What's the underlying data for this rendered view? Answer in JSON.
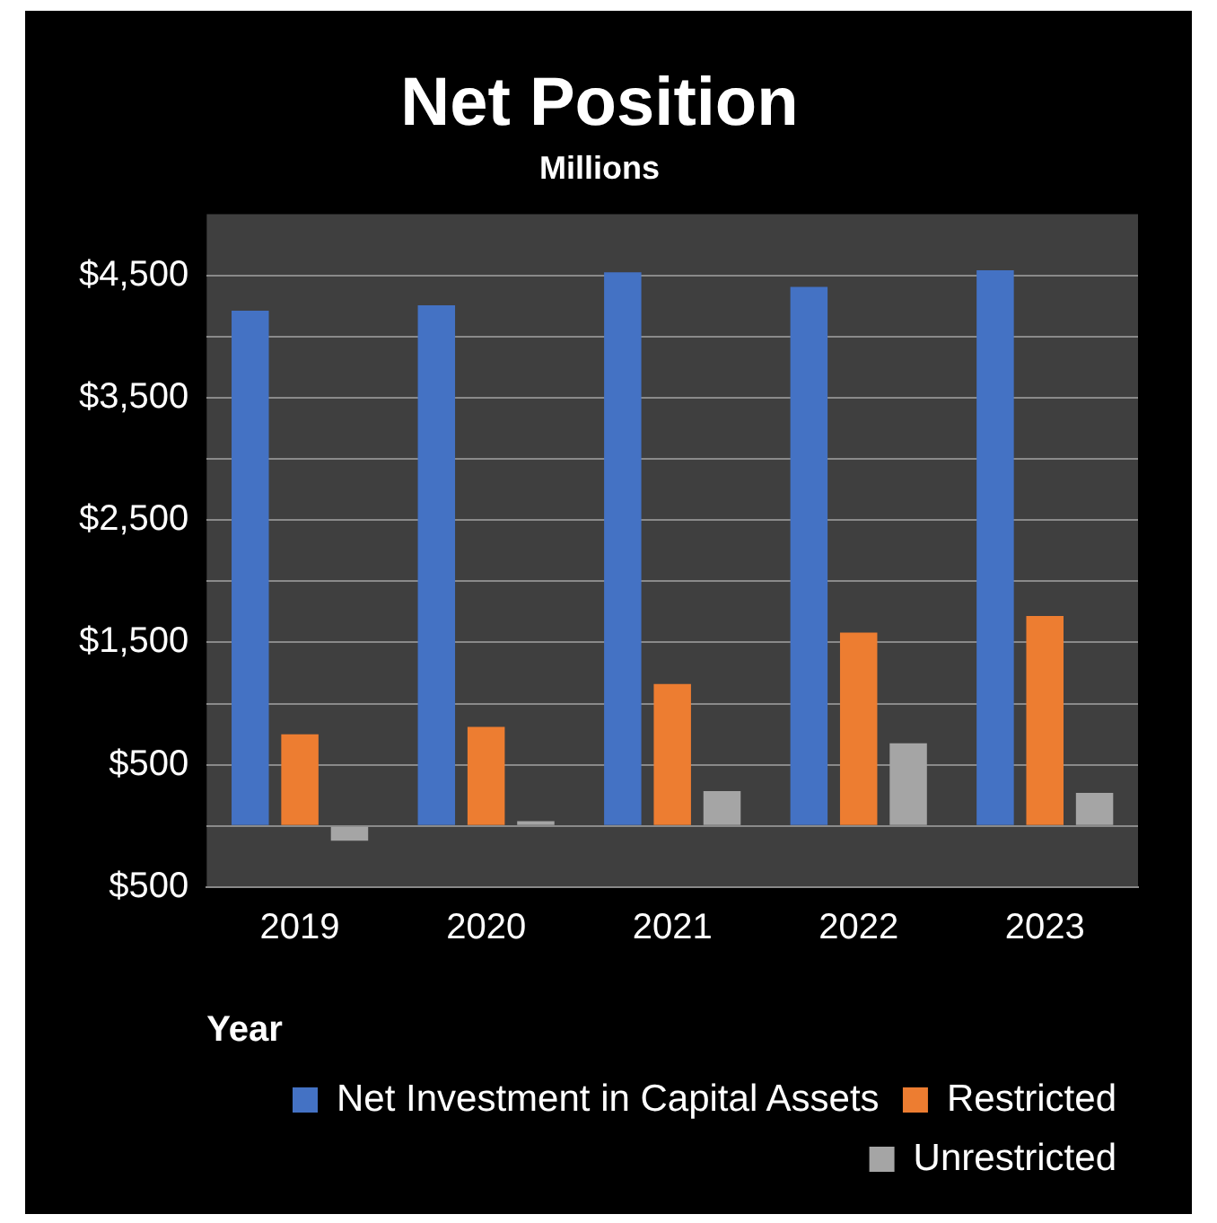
{
  "chart_data": {
    "type": "bar",
    "title": "Net Position",
    "subtitle": "Millions",
    "xlabel": "Year",
    "categories": [
      "2019",
      "2020",
      "2021",
      "2022",
      "2023"
    ],
    "series": [
      {
        "name": "Net Investment in Capital Assets",
        "color": "#4472c4",
        "values": [
          4210,
          4255,
          4525,
          4405,
          4540
        ]
      },
      {
        "name": "Restricted",
        "color": "#ed7d31",
        "values": [
          750,
          810,
          1160,
          1580,
          1715
        ]
      },
      {
        "name": "Unrestricted",
        "color": "#a5a5a5",
        "values": [
          -120,
          40,
          285,
          675,
          270
        ]
      }
    ],
    "ylim": [
      -500,
      5000
    ],
    "yticks": [
      {
        "value": -500,
        "label": "$500"
      },
      {
        "value": 0,
        "label": null
      },
      {
        "value": 500,
        "label": "$500"
      },
      {
        "value": 1000,
        "label": null
      },
      {
        "value": 1500,
        "label": "$1,500"
      },
      {
        "value": 2000,
        "label": null
      },
      {
        "value": 2500,
        "label": "$2,500"
      },
      {
        "value": 3000,
        "label": null
      },
      {
        "value": 3500,
        "label": "$3,500"
      },
      {
        "value": 4000,
        "label": null
      },
      {
        "value": 4500,
        "label": "$4,500"
      }
    ],
    "grid": "y",
    "legend": "bottom"
  }
}
